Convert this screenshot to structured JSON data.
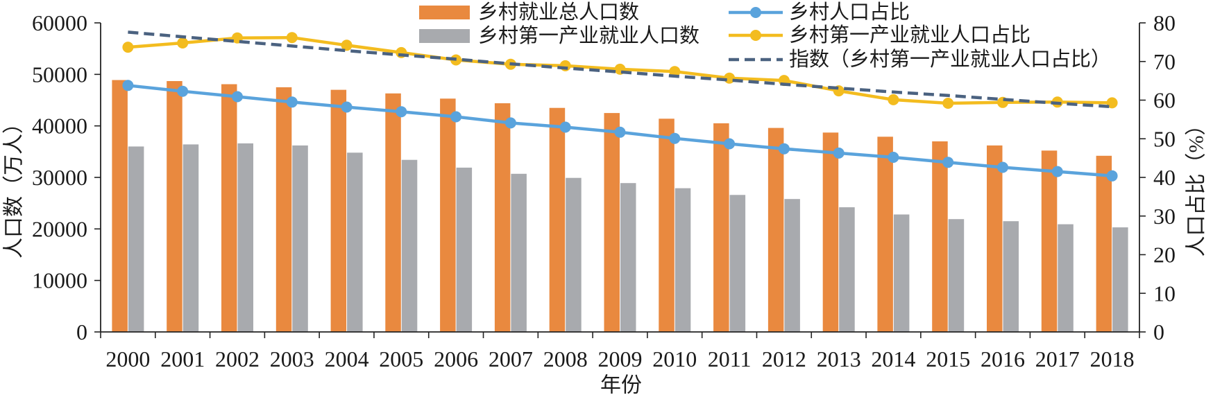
{
  "chart_data": {
    "type": "bar",
    "categories": [
      "2000",
      "2001",
      "2002",
      "2003",
      "2004",
      "2005",
      "2006",
      "2007",
      "2008",
      "2009",
      "2010",
      "2011",
      "2012",
      "2013",
      "2014",
      "2015",
      "2016",
      "2017",
      "2018"
    ],
    "xlabel": "年份",
    "ylabel": "人口数（万人）",
    "y2label": "人口占比（%）",
    "ylim": [
      0,
      60000
    ],
    "y2lim": [
      0,
      80
    ],
    "y_ticks": [
      "0",
      "10000",
      "20000",
      "30000",
      "40000",
      "50000",
      "60000"
    ],
    "y2_ticks": [
      "0",
      "10",
      "20",
      "30",
      "40",
      "50",
      "60",
      "70",
      "80"
    ],
    "grid": false,
    "legend_position": "top-center",
    "series": [
      {
        "name": "乡村就业总人口数",
        "type": "bar",
        "axis": "left",
        "color": "#E9893F",
        "values": [
          48900,
          48700,
          48100,
          47500,
          47000,
          46300,
          45300,
          44400,
          43500,
          42500,
          41400,
          40500,
          39600,
          38700,
          37900,
          37000,
          36200,
          35200,
          34200
        ]
      },
      {
        "name": "乡村第一产业就业人口数",
        "type": "bar",
        "axis": "left",
        "color": "#A8AAAE",
        "values": [
          36000,
          36400,
          36600,
          36200,
          34800,
          33400,
          31900,
          30700,
          29900,
          28900,
          27900,
          26600,
          25800,
          24200,
          22800,
          21900,
          21500,
          20900,
          20300
        ]
      },
      {
        "name": "乡村人口占比",
        "type": "line",
        "axis": "right",
        "marker": "circle",
        "color": "#5AA3DC",
        "values": [
          63.8,
          62.3,
          60.9,
          59.5,
          58.2,
          57.0,
          55.7,
          54.1,
          53.0,
          51.7,
          50.1,
          48.7,
          47.4,
          46.3,
          45.2,
          43.9,
          42.6,
          41.5,
          40.4
        ]
      },
      {
        "name": "乡村第一产业就业人口占比",
        "type": "line",
        "axis": "right",
        "marker": "circle",
        "color": "#F3BC1F",
        "values": [
          73.7,
          74.8,
          76.1,
          76.2,
          74.2,
          72.3,
          70.4,
          69.3,
          68.9,
          68.0,
          67.4,
          65.7,
          65.1,
          62.4,
          60.1,
          59.2,
          59.4,
          59.5,
          59.3
        ]
      },
      {
        "name": "指数（乡村第一产业就业人口占比）",
        "type": "line",
        "axis": "right",
        "style": "dashed",
        "color": "#4B6280",
        "values": [
          77.6,
          76.4,
          75.2,
          74.0,
          72.8,
          71.7,
          70.6,
          69.4,
          68.3,
          67.3,
          66.2,
          65.2,
          64.1,
          63.1,
          62.1,
          61.2,
          60.2,
          59.2,
          58.3
        ]
      }
    ]
  }
}
